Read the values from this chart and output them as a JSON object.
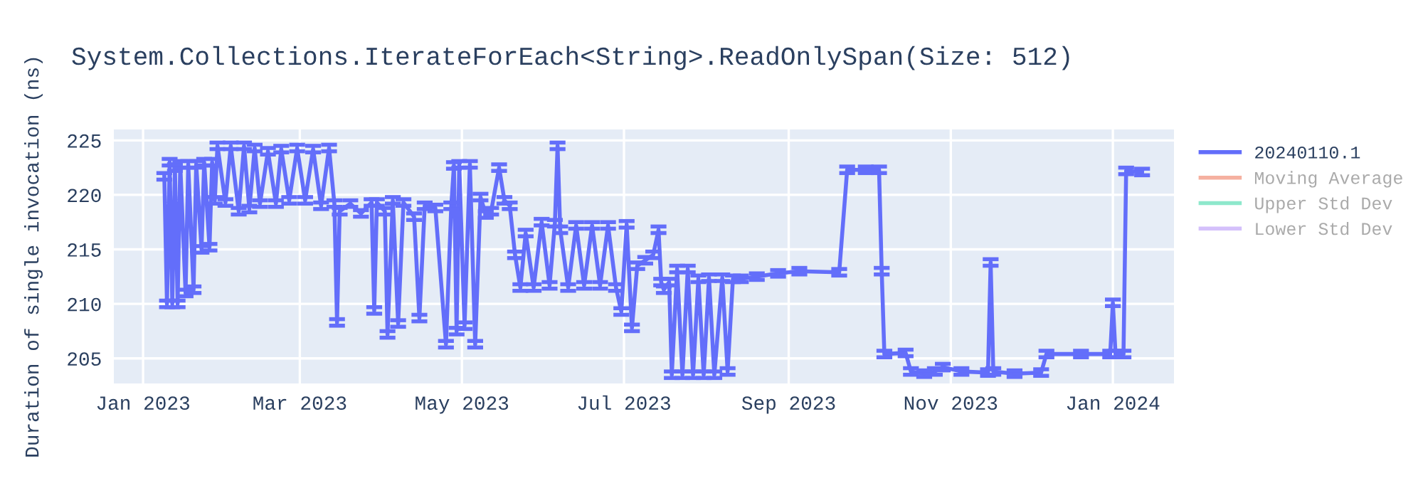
{
  "chart_data": {
    "type": "line",
    "title": "System.Collections.IterateForEach<String>.ReadOnlySpan(Size: 512)",
    "ylabel": "Duration of single invocation (ns)",
    "xlim": [
      "2022-12-21",
      "2024-01-24"
    ],
    "xticks": [
      {
        "value": "2023-01-01",
        "label": "Jan 2023"
      },
      {
        "value": "2023-03-01",
        "label": "Mar 2023"
      },
      {
        "value": "2023-05-01",
        "label": "May 2023"
      },
      {
        "value": "2023-07-01",
        "label": "Jul 2023"
      },
      {
        "value": "2023-09-01",
        "label": "Sep 2023"
      },
      {
        "value": "2023-11-01",
        "label": "Nov 2023"
      },
      {
        "value": "2024-01-01",
        "label": "Jan 2024"
      }
    ],
    "ylim": [
      202.7,
      226
    ],
    "yticks": [
      205,
      210,
      215,
      220,
      225
    ],
    "grid": true,
    "legend": "top right",
    "series": [
      {
        "name": "20240110.1",
        "color": "#636efa",
        "x": [
          "2023-01-09",
          "2023-01-10",
          "2023-01-11",
          "2023-01-12",
          "2023-01-13",
          "2023-01-14",
          "2023-01-15",
          "2023-01-17",
          "2023-01-18",
          "2023-01-20",
          "2023-01-21",
          "2023-01-23",
          "2023-01-24",
          "2023-01-26",
          "2023-01-27",
          "2023-01-28",
          "2023-01-29",
          "2023-02-01",
          "2023-02-03",
          "2023-02-06",
          "2023-02-08",
          "2023-02-10",
          "2023-02-12",
          "2023-02-14",
          "2023-02-17",
          "2023-02-20",
          "2023-02-22",
          "2023-02-25",
          "2023-02-28",
          "2023-03-03",
          "2023-03-06",
          "2023-03-09",
          "2023-03-12",
          "2023-03-14",
          "2023-03-15",
          "2023-03-16",
          "2023-03-20",
          "2023-03-24",
          "2023-03-28",
          "2023-03-29",
          "2023-03-30",
          "2023-04-02",
          "2023-04-03",
          "2023-04-05",
          "2023-04-07",
          "2023-04-09",
          "2023-04-13",
          "2023-04-15",
          "2023-04-17",
          "2023-04-21",
          "2023-04-25",
          "2023-04-27",
          "2023-04-28",
          "2023-04-29",
          "2023-04-30",
          "2023-05-02",
          "2023-05-04",
          "2023-05-06",
          "2023-05-08",
          "2023-05-10",
          "2023-05-12",
          "2023-05-15",
          "2023-05-17",
          "2023-05-19",
          "2023-05-21",
          "2023-05-23",
          "2023-05-25",
          "2023-05-28",
          "2023-05-31",
          "2023-06-03",
          "2023-06-05",
          "2023-06-06",
          "2023-06-07",
          "2023-06-10",
          "2023-06-13",
          "2023-06-16",
          "2023-06-19",
          "2023-06-22",
          "2023-06-25",
          "2023-06-28",
          "2023-06-30",
          "2023-07-02",
          "2023-07-04",
          "2023-07-06",
          "2023-07-09",
          "2023-07-12",
          "2023-07-14",
          "2023-07-15",
          "2023-07-16",
          "2023-07-18",
          "2023-07-19",
          "2023-07-21",
          "2023-07-23",
          "2023-07-25",
          "2023-07-27",
          "2023-07-29",
          "2023-07-31",
          "2023-08-02",
          "2023-08-04",
          "2023-08-07",
          "2023-08-09",
          "2023-08-11",
          "2023-08-14",
          "2023-08-20",
          "2023-08-28",
          "2023-09-05",
          "2023-09-20",
          "2023-09-23",
          "2023-09-30",
          "2023-10-05",
          "2023-10-06",
          "2023-10-07",
          "2023-10-15",
          "2023-10-17",
          "2023-10-22",
          "2023-10-26",
          "2023-10-29",
          "2023-11-05",
          "2023-11-15",
          "2023-11-16",
          "2023-11-17",
          "2023-11-25",
          "2023-12-05",
          "2023-12-07",
          "2023-12-20",
          "2023-12-31",
          "2024-01-01",
          "2024-01-02",
          "2024-01-05",
          "2024-01-06",
          "2024-01-12"
        ],
        "values": [
          221.7,
          210,
          223,
          210,
          222.5,
          210,
          222.8,
          211,
          222.8,
          211.3,
          222.8,
          215,
          223,
          215.2,
          223,
          219.5,
          224.5,
          219.3,
          224.5,
          218.5,
          224.5,
          218.7,
          224.3,
          219.2,
          224,
          219.2,
          224.2,
          219.5,
          224.3,
          219.5,
          224.2,
          219,
          224.3,
          219.2,
          208.3,
          218.5,
          219.2,
          218.3,
          219.3,
          209.4,
          219.3,
          218.5,
          207.2,
          219.5,
          208.2,
          219.3,
          218,
          208.7,
          219,
          218.8,
          206.3,
          219,
          222.7,
          207.5,
          222.8,
          208,
          222.8,
          206.3,
          219.8,
          218.2,
          218.5,
          222.5,
          219.5,
          219,
          214.5,
          211.5,
          216.5,
          211.5,
          217.5,
          211.7,
          217.4,
          224.5,
          216.8,
          211.5,
          217.2,
          211.7,
          217.2,
          211.7,
          217.2,
          211.5,
          209.3,
          217.3,
          207.8,
          213.5,
          214,
          214.5,
          216.8,
          212,
          211.3,
          212,
          203.5,
          213.2,
          203.5,
          213.2,
          203.5,
          212.3,
          203.5,
          212.4,
          203.5,
          212.4,
          203.8,
          212.3,
          212.3,
          212.5,
          212.8,
          213,
          212.9,
          222.3,
          222.3,
          222.3,
          213,
          205.4,
          205.5,
          203.8,
          203.6,
          203.8,
          204.2,
          203.8,
          203.7,
          213.8,
          203.8,
          203.6,
          203.7,
          205.4,
          205.4,
          205.4,
          210.1,
          205.4,
          205.4,
          222.2,
          222.1
        ],
        "errors": [
          0.3,
          0.3,
          0.3,
          0.3,
          0.3,
          0.3,
          0.3,
          0.3,
          0.3,
          0.3,
          0.3,
          0.3,
          0.3,
          0.3,
          0.3,
          0.3,
          0.3,
          0.3,
          0.3,
          0.3,
          0.3,
          0.3,
          0.3,
          0.3,
          0.3,
          0.3,
          0.3,
          0.3,
          0.3,
          0.3,
          0.3,
          0.3,
          0.3,
          0.3,
          0.3,
          0.3,
          0.3,
          0.3,
          0.3,
          0.3,
          0.3,
          0.3,
          0.3,
          0.3,
          0.3,
          0.3,
          0.3,
          0.3,
          0.3,
          0.3,
          0.3,
          0.3,
          0.3,
          0.3,
          0.3,
          0.3,
          0.3,
          0.3,
          0.3,
          0.3,
          0.3,
          0.3,
          0.3,
          0.3,
          0.3,
          0.3,
          0.3,
          0.3,
          0.3,
          0.3,
          0.3,
          0.3,
          0.3,
          0.3,
          0.3,
          0.3,
          0.3,
          0.3,
          0.3,
          0.3,
          0.3,
          0.3,
          0.3,
          0.3,
          0.3,
          0.3,
          0.3,
          0.3,
          0.3,
          0.3,
          0.3,
          0.3,
          0.3,
          0.3,
          0.3,
          0.3,
          0.3,
          0.3,
          0.3,
          0.3,
          0.3,
          0.3,
          0.3,
          0.3,
          0.3,
          0.3,
          0.3,
          0.3,
          0.3,
          0.3,
          0.3,
          0.3,
          0.3,
          0.3,
          0.3,
          0.3,
          0.3,
          0.3,
          0.3,
          0.3,
          0.3,
          0.3,
          0.3,
          0.3,
          0.3,
          0.3,
          0.3,
          0.3,
          0.3,
          0.3,
          0.3
        ]
      },
      {
        "name": "Moving Average",
        "color": "#f5b0a0"
      },
      {
        "name": "Upper Std Dev",
        "color": "#8ee8cc"
      },
      {
        "name": "Lower Std Dev",
        "color": "#d4c0fb"
      }
    ]
  }
}
